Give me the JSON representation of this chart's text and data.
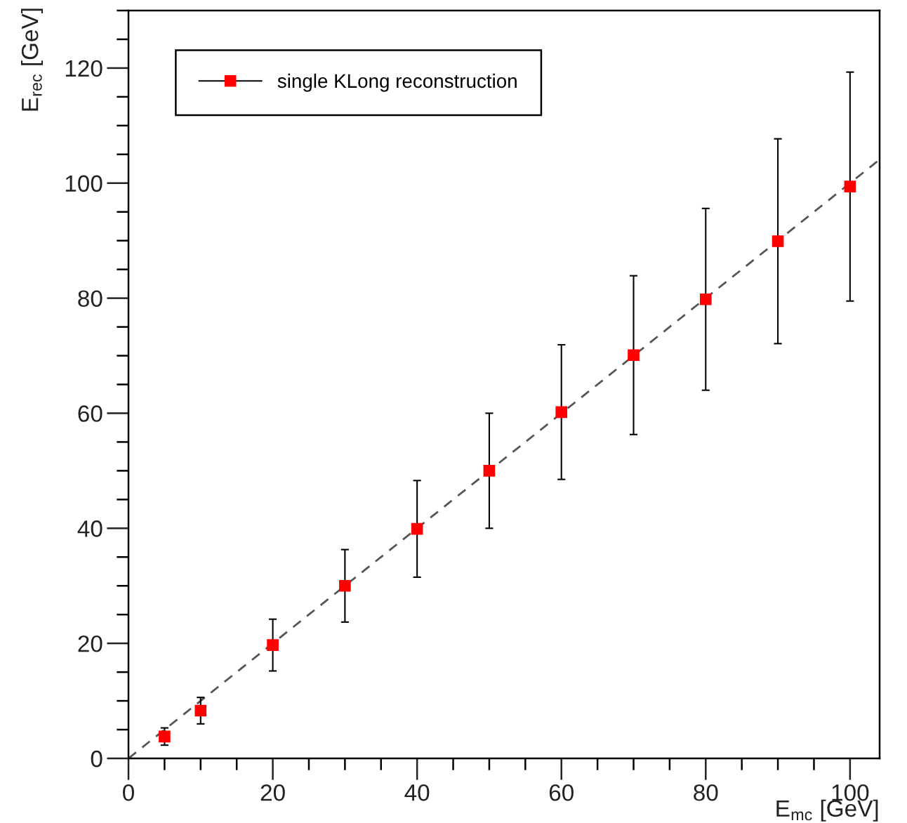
{
  "chart_data": {
    "type": "scatter",
    "xlabel": "E$_{mc}$ [GeV]",
    "ylabel": "E$_{rec}$ [GeV]",
    "xlim": [
      0,
      104.1
    ],
    "ylim": [
      0,
      130
    ],
    "xticks": [
      0,
      20,
      40,
      60,
      80,
      100
    ],
    "yticks": [
      0,
      20,
      40,
      60,
      80,
      100,
      120
    ],
    "grid": false,
    "legend": "top left",
    "marker": "square",
    "series": [
      {
        "name": "single KLong reconstruction",
        "color": "#ff0000",
        "x": [
          5,
          10,
          20,
          30,
          40,
          50,
          60,
          70,
          80,
          90,
          100
        ],
        "values": [
          3.8,
          8.3,
          19.7,
          30,
          39.9,
          50,
          60.2,
          70.1,
          79.8,
          89.9,
          99.4
        ],
        "errors": [
          1.5,
          2.3,
          4.5,
          6.3,
          8.4,
          10,
          11.7,
          13.8,
          15.8,
          17.8,
          19.9
        ]
      },
      {
        "type": "line",
        "color": "#555555",
        "line_style": "dashed",
        "marker": "none",
        "x": [
          0,
          104.1
        ],
        "values": [
          0,
          104.1
        ]
      }
    ]
  }
}
